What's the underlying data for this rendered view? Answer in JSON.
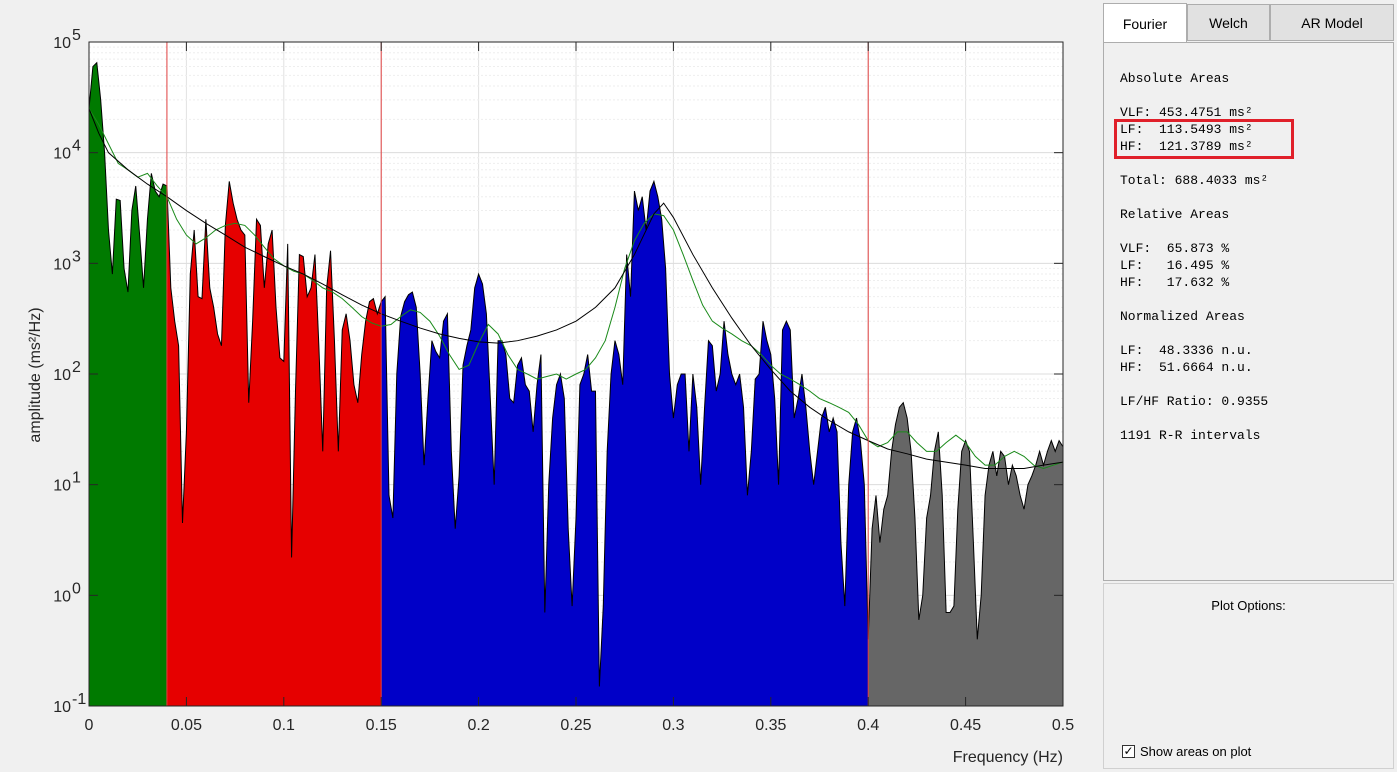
{
  "tabs": [
    {
      "label": "Fourier",
      "active": true
    },
    {
      "label": "Welch",
      "active": false
    },
    {
      "label": "AR Model",
      "active": false
    }
  ],
  "results": {
    "absolute_title": "Absolute Areas",
    "vlf_abs": "VLF: 453.4751 ms²",
    "lf_abs": "LF:  113.5493 ms²",
    "hf_abs": "HF:  121.3789 ms²",
    "total": "Total: 688.4033 ms²",
    "relative_title": "Relative Areas",
    "vlf_rel": "VLF:  65.873 %",
    "lf_rel": "LF:   16.495 %",
    "hf_rel": "HF:   17.632 %",
    "normalized_title": "Normalized Areas",
    "lf_norm": "LF:  48.3336 n.u.",
    "hf_norm": "HF:  51.6664 n.u.",
    "ratio": "LF/HF Ratio: 0.9355",
    "intervals": "1191 R-R intervals",
    "highlight_color": "#e0202a"
  },
  "plot_options": {
    "title": "Plot Options:",
    "show_areas_label": "Show areas on plot",
    "show_areas_checked": true
  },
  "chart_data": {
    "type": "area",
    "xlabel": "Frequency (Hz)",
    "ylabel": "amplitude (ms²/Hz)",
    "xlim": [
      0,
      0.5
    ],
    "ylim": [
      0.1,
      100000
    ],
    "y_scale": "log",
    "grid": true,
    "x_ticks": [
      "0",
      "0.05",
      "0.1",
      "0.15",
      "0.2",
      "0.25",
      "0.3",
      "0.35",
      "0.4",
      "0.45",
      "0.5"
    ],
    "y_ticks": [
      {
        "base": "10",
        "exp": "-1"
      },
      {
        "base": "10",
        "exp": "0"
      },
      {
        "base": "10",
        "exp": "1"
      },
      {
        "base": "10",
        "exp": "2"
      },
      {
        "base": "10",
        "exp": "3"
      },
      {
        "base": "10",
        "exp": "4"
      },
      {
        "base": "10",
        "exp": "5"
      }
    ],
    "band_boundaries": [
      0.04,
      0.15,
      0.4
    ],
    "band_colors": [
      "#007a00",
      "#e60000",
      "#0000c8",
      "#666666"
    ],
    "boundary_color": "#e04040",
    "psd": [
      [
        0.0,
        25000
      ],
      [
        0.002,
        60000
      ],
      [
        0.004,
        65000
      ],
      [
        0.006,
        30000
      ],
      [
        0.008,
        10000
      ],
      [
        0.01,
        2000
      ],
      [
        0.012,
        800
      ],
      [
        0.014,
        3800
      ],
      [
        0.016,
        3700
      ],
      [
        0.018,
        900
      ],
      [
        0.02,
        550
      ],
      [
        0.022,
        3000
      ],
      [
        0.024,
        5000
      ],
      [
        0.026,
        1800
      ],
      [
        0.028,
        600
      ],
      [
        0.03,
        2500
      ],
      [
        0.032,
        6500
      ],
      [
        0.034,
        4500
      ],
      [
        0.036,
        4000
      ],
      [
        0.038,
        5200
      ],
      [
        0.04,
        5000
      ],
      [
        0.042,
        600
      ],
      [
        0.044,
        300
      ],
      [
        0.046,
        180
      ],
      [
        0.048,
        4.5
      ],
      [
        0.05,
        30
      ],
      [
        0.052,
        800
      ],
      [
        0.054,
        2000
      ],
      [
        0.056,
        500
      ],
      [
        0.058,
        480
      ],
      [
        0.06,
        2500
      ],
      [
        0.062,
        600
      ],
      [
        0.064,
        400
      ],
      [
        0.066,
        230
      ],
      [
        0.068,
        180
      ],
      [
        0.07,
        2200
      ],
      [
        0.072,
        5500
      ],
      [
        0.074,
        3500
      ],
      [
        0.076,
        2500
      ],
      [
        0.078,
        2000
      ],
      [
        0.08,
        1800
      ],
      [
        0.082,
        55
      ],
      [
        0.084,
        300
      ],
      [
        0.086,
        2500
      ],
      [
        0.088,
        2200
      ],
      [
        0.09,
        600
      ],
      [
        0.092,
        1500
      ],
      [
        0.094,
        2000
      ],
      [
        0.096,
        400
      ],
      [
        0.098,
        140
      ],
      [
        0.1,
        130
      ],
      [
        0.102,
        1500
      ],
      [
        0.104,
        2.2
      ],
      [
        0.106,
        70
      ],
      [
        0.108,
        1200
      ],
      [
        0.11,
        1150
      ],
      [
        0.112,
        500
      ],
      [
        0.114,
        600
      ],
      [
        0.116,
        1200
      ],
      [
        0.118,
        180
      ],
      [
        0.12,
        20
      ],
      [
        0.122,
        600
      ],
      [
        0.124,
        1300
      ],
      [
        0.126,
        200
      ],
      [
        0.128,
        20
      ],
      [
        0.13,
        250
      ],
      [
        0.132,
        350
      ],
      [
        0.134,
        200
      ],
      [
        0.136,
        80
      ],
      [
        0.138,
        55
      ],
      [
        0.14,
        150
      ],
      [
        0.142,
        300
      ],
      [
        0.144,
        450
      ],
      [
        0.146,
        480
      ],
      [
        0.148,
        350
      ],
      [
        0.15,
        450
      ],
      [
        0.152,
        500
      ],
      [
        0.154,
        8
      ],
      [
        0.156,
        5
      ],
      [
        0.158,
        100
      ],
      [
        0.16,
        330
      ],
      [
        0.162,
        450
      ],
      [
        0.164,
        520
      ],
      [
        0.166,
        550
      ],
      [
        0.168,
        400
      ],
      [
        0.17,
        100
      ],
      [
        0.172,
        15
      ],
      [
        0.174,
        60
      ],
      [
        0.176,
        200
      ],
      [
        0.178,
        160
      ],
      [
        0.18,
        140
      ],
      [
        0.182,
        300
      ],
      [
        0.184,
        350
      ],
      [
        0.186,
        20
      ],
      [
        0.188,
        4
      ],
      [
        0.19,
        12
      ],
      [
        0.192,
        120
      ],
      [
        0.194,
        180
      ],
      [
        0.196,
        250
      ],
      [
        0.198,
        600
      ],
      [
        0.2,
        800
      ],
      [
        0.202,
        650
      ],
      [
        0.204,
        350
      ],
      [
        0.206,
        60
      ],
      [
        0.208,
        10
      ],
      [
        0.21,
        200
      ],
      [
        0.212,
        200
      ],
      [
        0.214,
        150
      ],
      [
        0.216,
        60
      ],
      [
        0.218,
        55
      ],
      [
        0.22,
        120
      ],
      [
        0.222,
        140
      ],
      [
        0.224,
        80
      ],
      [
        0.226,
        70
      ],
      [
        0.228,
        30
      ],
      [
        0.23,
        80
      ],
      [
        0.232,
        150
      ],
      [
        0.234,
        0.7
      ],
      [
        0.236,
        10
      ],
      [
        0.238,
        40
      ],
      [
        0.24,
        80
      ],
      [
        0.242,
        100
      ],
      [
        0.244,
        60
      ],
      [
        0.246,
        4
      ],
      [
        0.248,
        0.8
      ],
      [
        0.25,
        5
      ],
      [
        0.252,
        80
      ],
      [
        0.254,
        100
      ],
      [
        0.256,
        150
      ],
      [
        0.258,
        70
      ],
      [
        0.26,
        70
      ],
      [
        0.262,
        0.15
      ],
      [
        0.264,
        0.8
      ],
      [
        0.266,
        20
      ],
      [
        0.268,
        100
      ],
      [
        0.27,
        200
      ],
      [
        0.272,
        150
      ],
      [
        0.274,
        80
      ],
      [
        0.276,
        1200
      ],
      [
        0.278,
        500
      ],
      [
        0.28,
        4500
      ],
      [
        0.282,
        3000
      ],
      [
        0.284,
        4000
      ],
      [
        0.286,
        2000
      ],
      [
        0.288,
        4500
      ],
      [
        0.29,
        5500
      ],
      [
        0.292,
        4000
      ],
      [
        0.294,
        2500
      ],
      [
        0.296,
        900
      ],
      [
        0.298,
        100
      ],
      [
        0.3,
        40
      ],
      [
        0.302,
        80
      ],
      [
        0.304,
        100
      ],
      [
        0.306,
        100
      ],
      [
        0.308,
        20
      ],
      [
        0.31,
        100
      ],
      [
        0.312,
        50
      ],
      [
        0.314,
        10
      ],
      [
        0.316,
        50
      ],
      [
        0.318,
        200
      ],
      [
        0.32,
        180
      ],
      [
        0.322,
        70
      ],
      [
        0.324,
        100
      ],
      [
        0.326,
        300
      ],
      [
        0.328,
        150
      ],
      [
        0.33,
        100
      ],
      [
        0.332,
        80
      ],
      [
        0.334,
        100
      ],
      [
        0.336,
        50
      ],
      [
        0.338,
        8
      ],
      [
        0.34,
        20
      ],
      [
        0.342,
        90
      ],
      [
        0.344,
        100
      ],
      [
        0.346,
        300
      ],
      [
        0.348,
        200
      ],
      [
        0.35,
        150
      ],
      [
        0.352,
        60
      ],
      [
        0.354,
        10
      ],
      [
        0.356,
        250
      ],
      [
        0.358,
        300
      ],
      [
        0.36,
        250
      ],
      [
        0.362,
        40
      ],
      [
        0.364,
        60
      ],
      [
        0.366,
        100
      ],
      [
        0.368,
        50
      ],
      [
        0.37,
        20
      ],
      [
        0.372,
        10
      ],
      [
        0.374,
        20
      ],
      [
        0.376,
        40
      ],
      [
        0.378,
        50
      ],
      [
        0.38,
        30
      ],
      [
        0.382,
        40
      ],
      [
        0.384,
        30
      ],
      [
        0.386,
        3
      ],
      [
        0.388,
        0.8
      ],
      [
        0.39,
        10
      ],
      [
        0.392,
        30
      ],
      [
        0.394,
        40
      ],
      [
        0.396,
        25
      ],
      [
        0.398,
        10
      ],
      [
        0.4,
        0.4
      ],
      [
        0.402,
        4
      ],
      [
        0.404,
        8
      ],
      [
        0.406,
        3
      ],
      [
        0.408,
        6
      ],
      [
        0.41,
        8
      ],
      [
        0.412,
        20
      ],
      [
        0.414,
        35
      ],
      [
        0.416,
        50
      ],
      [
        0.418,
        55
      ],
      [
        0.42,
        40
      ],
      [
        0.422,
        20
      ],
      [
        0.424,
        5
      ],
      [
        0.426,
        0.6
      ],
      [
        0.428,
        1
      ],
      [
        0.43,
        5
      ],
      [
        0.432,
        8
      ],
      [
        0.434,
        20
      ],
      [
        0.436,
        30
      ],
      [
        0.438,
        8
      ],
      [
        0.44,
        0.7
      ],
      [
        0.442,
        0.7
      ],
      [
        0.444,
        0.8
      ],
      [
        0.446,
        6
      ],
      [
        0.448,
        20
      ],
      [
        0.45,
        25
      ],
      [
        0.452,
        20
      ],
      [
        0.454,
        3
      ],
      [
        0.456,
        0.4
      ],
      [
        0.458,
        1
      ],
      [
        0.46,
        8
      ],
      [
        0.462,
        15
      ],
      [
        0.464,
        20
      ],
      [
        0.466,
        12
      ],
      [
        0.468,
        20
      ],
      [
        0.47,
        18
      ],
      [
        0.472,
        10
      ],
      [
        0.474,
        15
      ],
      [
        0.476,
        12
      ],
      [
        0.478,
        8
      ],
      [
        0.48,
        6
      ],
      [
        0.482,
        10
      ],
      [
        0.484,
        12
      ],
      [
        0.486,
        15
      ],
      [
        0.488,
        20
      ],
      [
        0.49,
        15
      ],
      [
        0.492,
        20
      ],
      [
        0.494,
        25
      ],
      [
        0.496,
        20
      ],
      [
        0.498,
        25
      ],
      [
        0.5,
        22
      ]
    ],
    "smooth_black": [
      [
        0.0,
        25000
      ],
      [
        0.005,
        15000
      ],
      [
        0.01,
        10000
      ],
      [
        0.02,
        7000
      ],
      [
        0.03,
        5200
      ],
      [
        0.04,
        4000
      ],
      [
        0.05,
        3000
      ],
      [
        0.06,
        2300
      ],
      [
        0.07,
        1800
      ],
      [
        0.08,
        1400
      ],
      [
        0.09,
        1150
      ],
      [
        0.1,
        950
      ],
      [
        0.11,
        800
      ],
      [
        0.12,
        650
      ],
      [
        0.13,
        520
      ],
      [
        0.14,
        420
      ],
      [
        0.15,
        350
      ],
      [
        0.16,
        300
      ],
      [
        0.17,
        260
      ],
      [
        0.18,
        230
      ],
      [
        0.19,
        210
      ],
      [
        0.2,
        195
      ],
      [
        0.21,
        190
      ],
      [
        0.22,
        200
      ],
      [
        0.23,
        220
      ],
      [
        0.24,
        250
      ],
      [
        0.25,
        300
      ],
      [
        0.26,
        400
      ],
      [
        0.27,
        600
      ],
      [
        0.28,
        1200
      ],
      [
        0.29,
        2800
      ],
      [
        0.295,
        3500
      ],
      [
        0.3,
        2600
      ],
      [
        0.31,
        1200
      ],
      [
        0.32,
        600
      ],
      [
        0.33,
        320
      ],
      [
        0.34,
        180
      ],
      [
        0.35,
        110
      ],
      [
        0.36,
        70
      ],
      [
        0.37,
        50
      ],
      [
        0.38,
        38
      ],
      [
        0.39,
        30
      ],
      [
        0.4,
        25
      ],
      [
        0.41,
        21
      ],
      [
        0.42,
        19
      ],
      [
        0.43,
        17
      ],
      [
        0.44,
        16
      ],
      [
        0.45,
        15
      ],
      [
        0.46,
        14
      ],
      [
        0.47,
        14
      ],
      [
        0.48,
        14
      ],
      [
        0.49,
        15
      ],
      [
        0.5,
        16
      ]
    ],
    "smooth_green": [
      [
        0.0,
        25000
      ],
      [
        0.005,
        18000
      ],
      [
        0.01,
        12000
      ],
      [
        0.015,
        8000
      ],
      [
        0.02,
        7000
      ],
      [
        0.025,
        6000
      ],
      [
        0.03,
        6500
      ],
      [
        0.035,
        5000
      ],
      [
        0.04,
        4000
      ],
      [
        0.045,
        2500
      ],
      [
        0.05,
        1800
      ],
      [
        0.055,
        1500
      ],
      [
        0.06,
        1700
      ],
      [
        0.065,
        2000
      ],
      [
        0.07,
        2200
      ],
      [
        0.075,
        2300
      ],
      [
        0.08,
        2200
      ],
      [
        0.085,
        1800
      ],
      [
        0.09,
        1400
      ],
      [
        0.095,
        1100
      ],
      [
        0.1,
        950
      ],
      [
        0.105,
        850
      ],
      [
        0.11,
        800
      ],
      [
        0.115,
        700
      ],
      [
        0.12,
        600
      ],
      [
        0.125,
        550
      ],
      [
        0.13,
        480
      ],
      [
        0.135,
        400
      ],
      [
        0.14,
        330
      ],
      [
        0.145,
        290
      ],
      [
        0.15,
        270
      ],
      [
        0.155,
        280
      ],
      [
        0.16,
        330
      ],
      [
        0.165,
        380
      ],
      [
        0.17,
        360
      ],
      [
        0.175,
        300
      ],
      [
        0.18,
        220
      ],
      [
        0.185,
        150
      ],
      [
        0.19,
        110
      ],
      [
        0.195,
        120
      ],
      [
        0.2,
        190
      ],
      [
        0.205,
        280
      ],
      [
        0.21,
        230
      ],
      [
        0.215,
        150
      ],
      [
        0.22,
        110
      ],
      [
        0.225,
        100
      ],
      [
        0.23,
        90
      ],
      [
        0.235,
        95
      ],
      [
        0.24,
        100
      ],
      [
        0.245,
        90
      ],
      [
        0.25,
        100
      ],
      [
        0.255,
        110
      ],
      [
        0.26,
        140
      ],
      [
        0.265,
        200
      ],
      [
        0.27,
        400
      ],
      [
        0.275,
        900
      ],
      [
        0.28,
        1600
      ],
      [
        0.285,
        2300
      ],
      [
        0.29,
        2800
      ],
      [
        0.295,
        2700
      ],
      [
        0.3,
        2000
      ],
      [
        0.305,
        1200
      ],
      [
        0.31,
        700
      ],
      [
        0.315,
        420
      ],
      [
        0.32,
        300
      ],
      [
        0.325,
        260
      ],
      [
        0.33,
        230
      ],
      [
        0.335,
        200
      ],
      [
        0.34,
        180
      ],
      [
        0.345,
        150
      ],
      [
        0.35,
        120
      ],
      [
        0.355,
        100
      ],
      [
        0.36,
        90
      ],
      [
        0.365,
        80
      ],
      [
        0.37,
        70
      ],
      [
        0.375,
        60
      ],
      [
        0.38,
        55
      ],
      [
        0.385,
        50
      ],
      [
        0.39,
        45
      ],
      [
        0.395,
        35
      ],
      [
        0.4,
        25
      ],
      [
        0.405,
        22
      ],
      [
        0.41,
        24
      ],
      [
        0.415,
        30
      ],
      [
        0.42,
        30
      ],
      [
        0.425,
        24
      ],
      [
        0.43,
        20
      ],
      [
        0.435,
        20
      ],
      [
        0.44,
        24
      ],
      [
        0.445,
        28
      ],
      [
        0.45,
        24
      ],
      [
        0.455,
        18
      ],
      [
        0.46,
        15
      ],
      [
        0.465,
        15
      ],
      [
        0.47,
        18
      ],
      [
        0.475,
        20
      ],
      [
        0.48,
        18
      ],
      [
        0.485,
        15
      ],
      [
        0.49,
        14
      ],
      [
        0.495,
        15
      ],
      [
        0.5,
        16
      ]
    ]
  }
}
